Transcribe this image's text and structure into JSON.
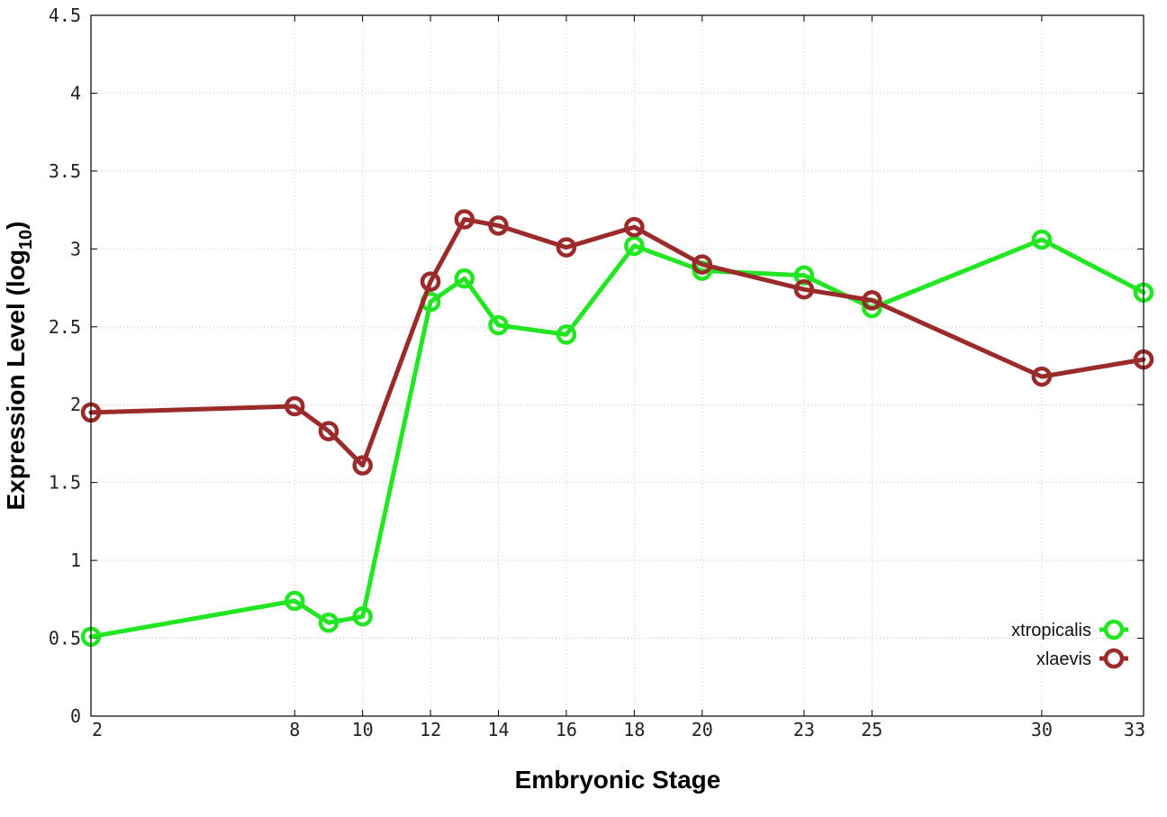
{
  "chart_data": {
    "type": "line",
    "title": "",
    "xlabel": "Embryonic Stage",
    "ylabel": {
      "prefix": "Expression Level (log",
      "subscript": "10",
      "suffix": ")"
    },
    "xlim": [
      2,
      33
    ],
    "ylim": [
      0,
      4.5
    ],
    "x_ticks": [
      2,
      8,
      10,
      12,
      14,
      16,
      18,
      20,
      23,
      25,
      30,
      33
    ],
    "x_tick_labels": [
      "2",
      "8",
      "10",
      "12",
      "14",
      "16",
      "18",
      "20",
      "23",
      "25",
      "30",
      "33"
    ],
    "y_ticks": [
      0,
      0.5,
      1,
      1.5,
      2,
      2.5,
      3,
      3.5,
      4,
      4.5
    ],
    "y_tick_labels": [
      "0",
      "0.5",
      "1",
      "1.5",
      "2",
      "2.5",
      "3",
      "3.5",
      "4",
      "4.5"
    ],
    "grid": true,
    "legend_position": "bottom-right",
    "series": [
      {
        "name": "xtropicalis",
        "color": "#22e622",
        "marker": "circle",
        "x": [
          2,
          8,
          9,
          10,
          12,
          13,
          14,
          16,
          18,
          20,
          23,
          25,
          30,
          33
        ],
        "y": [
          0.51,
          0.74,
          0.6,
          0.64,
          2.66,
          2.81,
          2.51,
          2.45,
          3.02,
          2.86,
          2.83,
          2.62,
          3.06,
          2.72
        ]
      },
      {
        "name": "xlaevis",
        "color": "#9b2a2a",
        "marker": "circle",
        "x": [
          2,
          8,
          9,
          10,
          12,
          13,
          14,
          16,
          18,
          20,
          23,
          25,
          30,
          33
        ],
        "y": [
          1.95,
          1.99,
          1.83,
          1.61,
          2.79,
          3.19,
          3.15,
          3.01,
          3.14,
          2.9,
          2.74,
          2.67,
          2.18,
          2.29
        ]
      }
    ]
  }
}
